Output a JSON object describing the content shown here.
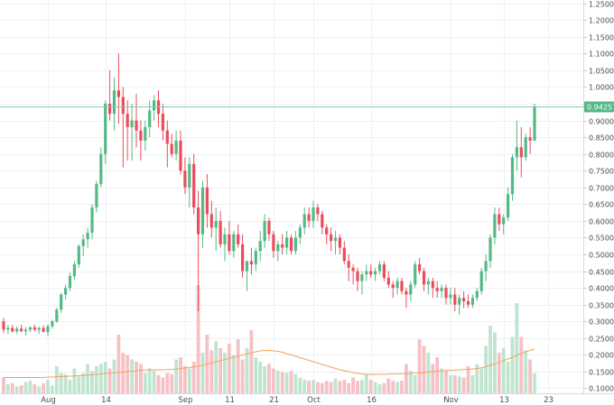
{
  "chart_data": {
    "type": "candlestick",
    "title": "",
    "colors": {
      "up": "#53b987",
      "down": "#eb4d5c",
      "vol_up": "#bfe5d1",
      "vol_down": "#f6c1c5",
      "ma": "#f3a25b",
      "price_line": "#84c8b3",
      "grid": "#eef0f2",
      "bg": "#ffffff"
    },
    "y_axis": {
      "range": [
        0.085,
        1.26
      ],
      "ticks": [
        "1.25000",
        "1.20000",
        "1.15000",
        "1.10000",
        "1.05000",
        "1.00000",
        "0.95000",
        "0.90000",
        "0.85000",
        "0.80000",
        "0.75000",
        "0.70000",
        "0.65000",
        "0.60000",
        "0.55000",
        "0.50000",
        "0.45000",
        "0.40000",
        "0.35000",
        "0.30000",
        "0.25000",
        "0.20000",
        "0.15000",
        "0.10000"
      ]
    },
    "x_axis": {
      "labels": [
        {
          "text": "Aug",
          "index": 10
        },
        {
          "text": "14",
          "index": 23
        },
        {
          "text": "Sep",
          "index": 41
        },
        {
          "text": "11",
          "index": 51
        },
        {
          "text": "21",
          "index": 61
        },
        {
          "text": "Oct",
          "index": 70
        },
        {
          "text": "16",
          "index": 83
        },
        {
          "text": "Nov",
          "index": 101
        },
        {
          "text": "13",
          "index": 113
        },
        {
          "text": "23",
          "index": 123
        }
      ]
    },
    "last_price": {
      "value": 0.94257,
      "label": "0.94257"
    },
    "candles": [
      [
        0.3,
        0.31,
        0.265,
        0.275
      ],
      [
        0.275,
        0.29,
        0.262,
        0.28
      ],
      [
        0.28,
        0.29,
        0.266,
        0.27
      ],
      [
        0.27,
        0.285,
        0.262,
        0.278
      ],
      [
        0.278,
        0.29,
        0.268,
        0.27
      ],
      [
        0.27,
        0.283,
        0.258,
        0.275
      ],
      [
        0.275,
        0.285,
        0.268,
        0.282
      ],
      [
        0.282,
        0.29,
        0.27,
        0.275
      ],
      [
        0.275,
        0.285,
        0.262,
        0.28
      ],
      [
        0.28,
        0.288,
        0.27,
        0.268
      ],
      [
        0.268,
        0.29,
        0.255,
        0.285
      ],
      [
        0.285,
        0.305,
        0.278,
        0.3
      ],
      [
        0.3,
        0.34,
        0.295,
        0.335
      ],
      [
        0.335,
        0.385,
        0.325,
        0.38
      ],
      [
        0.38,
        0.41,
        0.365,
        0.4
      ],
      [
        0.4,
        0.445,
        0.39,
        0.435
      ],
      [
        0.435,
        0.48,
        0.425,
        0.47
      ],
      [
        0.47,
        0.53,
        0.46,
        0.525
      ],
      [
        0.525,
        0.56,
        0.495,
        0.545
      ],
      [
        0.545,
        0.58,
        0.52,
        0.565
      ],
      [
        0.565,
        0.65,
        0.545,
        0.64
      ],
      [
        0.64,
        0.72,
        0.625,
        0.71
      ],
      [
        0.71,
        0.82,
        0.7,
        0.8
      ],
      [
        0.8,
        0.96,
        0.77,
        0.95
      ],
      [
        0.95,
        1.05,
        0.9,
        0.92
      ],
      [
        0.92,
        1.03,
        0.87,
        0.99
      ],
      [
        0.99,
        1.1,
        0.89,
        0.97
      ],
      [
        0.97,
        1.0,
        0.76,
        0.92
      ],
      [
        0.92,
        0.96,
        0.78,
        0.88
      ],
      [
        0.88,
        0.95,
        0.78,
        0.9
      ],
      [
        0.9,
        0.98,
        0.82,
        0.87
      ],
      [
        0.87,
        0.9,
        0.78,
        0.84
      ],
      [
        0.84,
        0.9,
        0.81,
        0.88
      ],
      [
        0.88,
        0.96,
        0.85,
        0.93
      ],
      [
        0.93,
        0.975,
        0.9,
        0.96
      ],
      [
        0.96,
        0.99,
        0.88,
        0.92
      ],
      [
        0.92,
        0.95,
        0.84,
        0.87
      ],
      [
        0.87,
        0.9,
        0.76,
        0.83
      ],
      [
        0.83,
        0.86,
        0.79,
        0.8
      ],
      [
        0.8,
        0.87,
        0.78,
        0.84
      ],
      [
        0.84,
        0.87,
        0.74,
        0.75
      ],
      [
        0.75,
        0.79,
        0.68,
        0.7
      ],
      [
        0.7,
        0.79,
        0.64,
        0.77
      ],
      [
        0.77,
        0.8,
        0.62,
        0.64
      ],
      [
        0.64,
        0.69,
        0.33,
        0.56
      ],
      [
        0.56,
        0.72,
        0.52,
        0.7
      ],
      [
        0.7,
        0.74,
        0.58,
        0.62
      ],
      [
        0.62,
        0.66,
        0.55,
        0.58
      ],
      [
        0.58,
        0.64,
        0.51,
        0.6
      ],
      [
        0.6,
        0.63,
        0.52,
        0.53
      ],
      [
        0.53,
        0.58,
        0.48,
        0.56
      ],
      [
        0.56,
        0.6,
        0.5,
        0.51
      ],
      [
        0.51,
        0.57,
        0.49,
        0.56
      ],
      [
        0.56,
        0.59,
        0.52,
        0.53
      ],
      [
        0.53,
        0.56,
        0.43,
        0.45
      ],
      [
        0.45,
        0.48,
        0.39,
        0.48
      ],
      [
        0.48,
        0.52,
        0.44,
        0.47
      ],
      [
        0.47,
        0.52,
        0.45,
        0.51
      ],
      [
        0.51,
        0.57,
        0.48,
        0.54
      ],
      [
        0.54,
        0.62,
        0.52,
        0.6
      ],
      [
        0.6,
        0.61,
        0.54,
        0.56
      ],
      [
        0.56,
        0.57,
        0.49,
        0.51
      ],
      [
        0.51,
        0.54,
        0.48,
        0.53
      ],
      [
        0.53,
        0.56,
        0.5,
        0.52
      ],
      [
        0.52,
        0.57,
        0.5,
        0.55
      ],
      [
        0.55,
        0.56,
        0.5,
        0.51
      ],
      [
        0.51,
        0.57,
        0.5,
        0.55
      ],
      [
        0.55,
        0.59,
        0.53,
        0.58
      ],
      [
        0.58,
        0.64,
        0.56,
        0.62
      ],
      [
        0.62,
        0.64,
        0.58,
        0.6
      ],
      [
        0.6,
        0.66,
        0.58,
        0.64
      ],
      [
        0.64,
        0.65,
        0.6,
        0.62
      ],
      [
        0.62,
        0.63,
        0.56,
        0.58
      ],
      [
        0.58,
        0.59,
        0.53,
        0.56
      ],
      [
        0.56,
        0.58,
        0.51,
        0.54
      ],
      [
        0.54,
        0.57,
        0.5,
        0.55
      ],
      [
        0.55,
        0.56,
        0.5,
        0.52
      ],
      [
        0.52,
        0.54,
        0.47,
        0.48
      ],
      [
        0.48,
        0.5,
        0.42,
        0.46
      ],
      [
        0.46,
        0.47,
        0.41,
        0.45
      ],
      [
        0.45,
        0.46,
        0.39,
        0.42
      ],
      [
        0.42,
        0.45,
        0.38,
        0.44
      ],
      [
        0.44,
        0.47,
        0.42,
        0.45
      ],
      [
        0.45,
        0.47,
        0.43,
        0.44
      ],
      [
        0.44,
        0.46,
        0.42,
        0.45
      ],
      [
        0.45,
        0.48,
        0.44,
        0.47
      ],
      [
        0.47,
        0.48,
        0.42,
        0.43
      ],
      [
        0.43,
        0.45,
        0.4,
        0.41
      ],
      [
        0.41,
        0.42,
        0.37,
        0.4
      ],
      [
        0.4,
        0.43,
        0.38,
        0.42
      ],
      [
        0.42,
        0.43,
        0.38,
        0.39
      ],
      [
        0.39,
        0.4,
        0.34,
        0.38
      ],
      [
        0.38,
        0.42,
        0.36,
        0.41
      ],
      [
        0.41,
        0.48,
        0.4,
        0.47
      ],
      [
        0.47,
        0.49,
        0.44,
        0.45
      ],
      [
        0.45,
        0.46,
        0.39,
        0.41
      ],
      [
        0.41,
        0.43,
        0.38,
        0.42
      ],
      [
        0.42,
        0.43,
        0.37,
        0.4
      ],
      [
        0.4,
        0.42,
        0.37,
        0.39
      ],
      [
        0.39,
        0.41,
        0.37,
        0.4
      ],
      [
        0.4,
        0.41,
        0.35,
        0.37
      ],
      [
        0.37,
        0.4,
        0.35,
        0.38
      ],
      [
        0.38,
        0.4,
        0.33,
        0.35
      ],
      [
        0.35,
        0.38,
        0.32,
        0.37
      ],
      [
        0.37,
        0.39,
        0.34,
        0.36
      ],
      [
        0.36,
        0.38,
        0.34,
        0.35
      ],
      [
        0.35,
        0.38,
        0.34,
        0.37
      ],
      [
        0.37,
        0.4,
        0.36,
        0.39
      ],
      [
        0.39,
        0.46,
        0.38,
        0.45
      ],
      [
        0.45,
        0.5,
        0.42,
        0.48
      ],
      [
        0.48,
        0.56,
        0.46,
        0.55
      ],
      [
        0.55,
        0.64,
        0.53,
        0.62
      ],
      [
        0.62,
        0.64,
        0.57,
        0.59
      ],
      [
        0.59,
        0.62,
        0.56,
        0.61
      ],
      [
        0.61,
        0.7,
        0.6,
        0.68
      ],
      [
        0.68,
        0.8,
        0.66,
        0.79
      ],
      [
        0.79,
        0.9,
        0.75,
        0.82
      ],
      [
        0.82,
        0.88,
        0.73,
        0.79
      ],
      [
        0.79,
        0.86,
        0.78,
        0.85
      ],
      [
        0.85,
        0.88,
        0.8,
        0.84
      ],
      [
        0.84,
        0.95,
        0.84,
        0.94257
      ]
    ],
    "volume": {
      "range": [
        0,
        480
      ],
      "values": [
        70,
        40,
        45,
        30,
        35,
        50,
        55,
        40,
        30,
        45,
        60,
        35,
        120,
        90,
        85,
        60,
        110,
        75,
        90,
        130,
        100,
        120,
        130,
        140,
        110,
        150,
        260,
        180,
        170,
        150,
        140,
        130,
        90,
        110,
        100,
        80,
        70,
        90,
        85,
        150,
        160,
        120,
        110,
        140,
        480,
        180,
        260,
        190,
        230,
        200,
        180,
        220,
        170,
        240,
        150,
        200,
        280,
        160,
        140,
        120,
        130,
        110,
        100,
        95,
        90,
        100,
        85,
        70,
        60,
        55,
        60,
        50,
        45,
        55,
        50,
        65,
        55,
        60,
        45,
        70,
        55,
        60,
        85,
        60,
        50,
        40,
        45,
        65,
        55,
        50,
        55,
        130,
        100,
        80,
        240,
        210,
        180,
        130,
        160,
        110,
        100,
        80,
        80,
        75,
        70,
        120,
        80,
        130,
        110,
        210,
        300,
        270,
        180,
        200,
        140,
        250,
        400,
        250,
        190,
        150,
        90
      ],
      "ma": [
        70,
        70,
        70,
        70,
        70,
        70,
        70,
        70,
        70,
        70,
        72,
        72,
        73,
        74,
        75,
        76,
        77,
        78,
        79,
        80,
        82,
        84,
        86,
        88,
        89,
        90,
        92,
        94,
        96,
        98,
        100,
        102,
        103,
        104,
        104,
        104,
        104,
        105,
        106,
        107,
        110,
        112,
        114,
        117,
        120,
        125,
        130,
        135,
        140,
        145,
        150,
        155,
        160,
        165,
        170,
        175,
        180,
        184,
        188,
        190,
        190,
        188,
        186,
        182,
        176,
        170,
        164,
        158,
        152,
        146,
        140,
        134,
        128,
        122,
        116,
        110,
        104,
        100,
        96,
        92,
        88,
        86,
        84,
        84,
        84,
        84,
        84,
        85,
        86,
        86,
        86,
        87,
        88,
        89,
        90,
        92,
        94,
        96,
        98,
        100,
        101,
        102,
        103,
        104,
        105,
        106,
        108,
        110,
        113,
        118,
        124,
        130,
        137,
        145,
        152,
        160,
        168,
        176,
        184,
        190,
        196
      ]
    }
  }
}
